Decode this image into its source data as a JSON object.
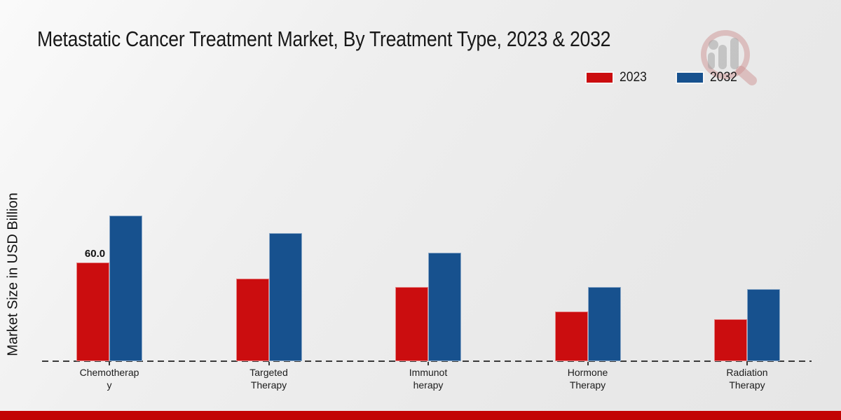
{
  "chart_data": {
    "type": "bar",
    "title": "Metastatic Cancer Treatment Market, By Treatment Type, 2023 & 2032",
    "ylabel": "Market Size in USD Billion",
    "xlabel": "",
    "categories": [
      "Chemotherapy",
      "Targeted Therapy",
      "Immunotherapy",
      "Hormone Therapy",
      "Radiation Therapy"
    ],
    "category_label_lines": [
      [
        "Chemotherap",
        "y"
      ],
      [
        "Targeted",
        "Therapy"
      ],
      [
        "Immunot",
        "herapy"
      ],
      [
        "Hormone",
        "Therapy"
      ],
      [
        "Radiation",
        "Therapy"
      ]
    ],
    "series": [
      {
        "name": "2023",
        "color": "#cb0d0f",
        "values": [
          60.0,
          50.0,
          45.0,
          30.0,
          25.5
        ]
      },
      {
        "name": "2032",
        "color": "#17518e",
        "values": [
          88.5,
          78.0,
          66.0,
          45.0,
          44.0
        ]
      }
    ],
    "bar_labels": [
      {
        "category_index": 0,
        "series_index": 0,
        "text": "60.0"
      }
    ],
    "ylim": [
      0,
      100
    ],
    "grid": false,
    "axis_line_style": "dashed",
    "legend_position": "top-right"
  },
  "legend": {
    "items": [
      {
        "label": "2023",
        "color": "#cb0d0f"
      },
      {
        "label": "2032",
        "color": "#17518e"
      }
    ]
  },
  "colors": {
    "accent_red": "#cb0d0f",
    "accent_blue": "#17518e",
    "bottom_strip": "#c20404",
    "axis_line": "#3a3a3a",
    "title_text": "#181818"
  },
  "footer": {
    "accent_bar": ""
  }
}
